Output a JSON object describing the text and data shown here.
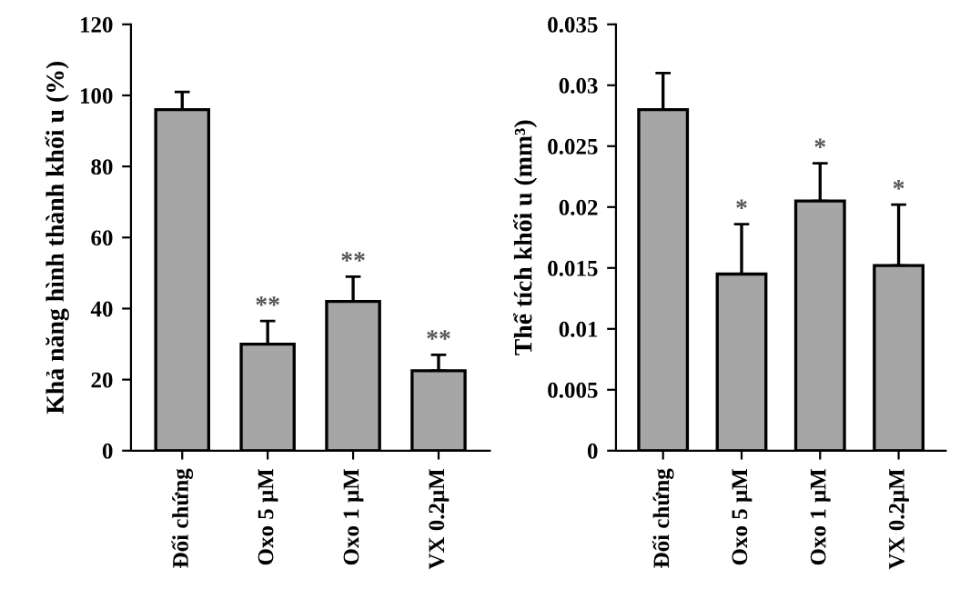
{
  "chart_data": [
    {
      "type": "bar",
      "ylabel": "Khả năng hình thành khối u (%)",
      "categories": [
        "Đối chứng",
        "Oxo 5 μM",
        "Oxo 1 μM",
        "VX 0.2μM"
      ],
      "values": [
        96,
        30,
        42,
        22.5
      ],
      "errors": [
        [
          96,
          101
        ],
        [
          30,
          36.5
        ],
        [
          42,
          49
        ],
        [
          22.5,
          27
        ]
      ],
      "color": "#a6a6a6",
      "ylim": [
        0,
        120
      ],
      "yticks": [
        0,
        20,
        40,
        60,
        80,
        100,
        120
      ],
      "grid": false,
      "legend": false,
      "annotations": [
        {
          "text": "**",
          "x": "Oxo 5 μM",
          "y": 36.5
        },
        {
          "text": "**",
          "x": "Oxo 1 μM",
          "y": 49
        },
        {
          "text": "**",
          "x": "VX 0.2μM",
          "y": 27
        }
      ]
    },
    {
      "type": "bar",
      "ylabel": "Thể tích khối u (mm³)",
      "categories": [
        "Đối chứng",
        "Oxo 5 μM",
        "Oxo 1 μM",
        "VX 0.2μM"
      ],
      "values": [
        0.028,
        0.0145,
        0.0205,
        0.0152
      ],
      "errors": [
        [
          0.028,
          0.031
        ],
        [
          0.0145,
          0.0186
        ],
        [
          0.0205,
          0.0236
        ],
        [
          0.0152,
          0.0202
        ]
      ],
      "color": "#a6a6a6",
      "ylim": [
        0,
        0.035
      ],
      "yticks": [
        0,
        0.005,
        0.01,
        0.015,
        0.02,
        0.025,
        0.03,
        0.035
      ],
      "grid": false,
      "legend": false,
      "annotations": [
        {
          "text": "*",
          "x": "Oxo 5 μM",
          "y": 0.0186
        },
        {
          "text": "*",
          "x": "Oxo 1 μM",
          "y": 0.0236
        },
        {
          "text": "*",
          "x": "VX 0.2μM",
          "y": 0.0202
        }
      ]
    }
  ]
}
